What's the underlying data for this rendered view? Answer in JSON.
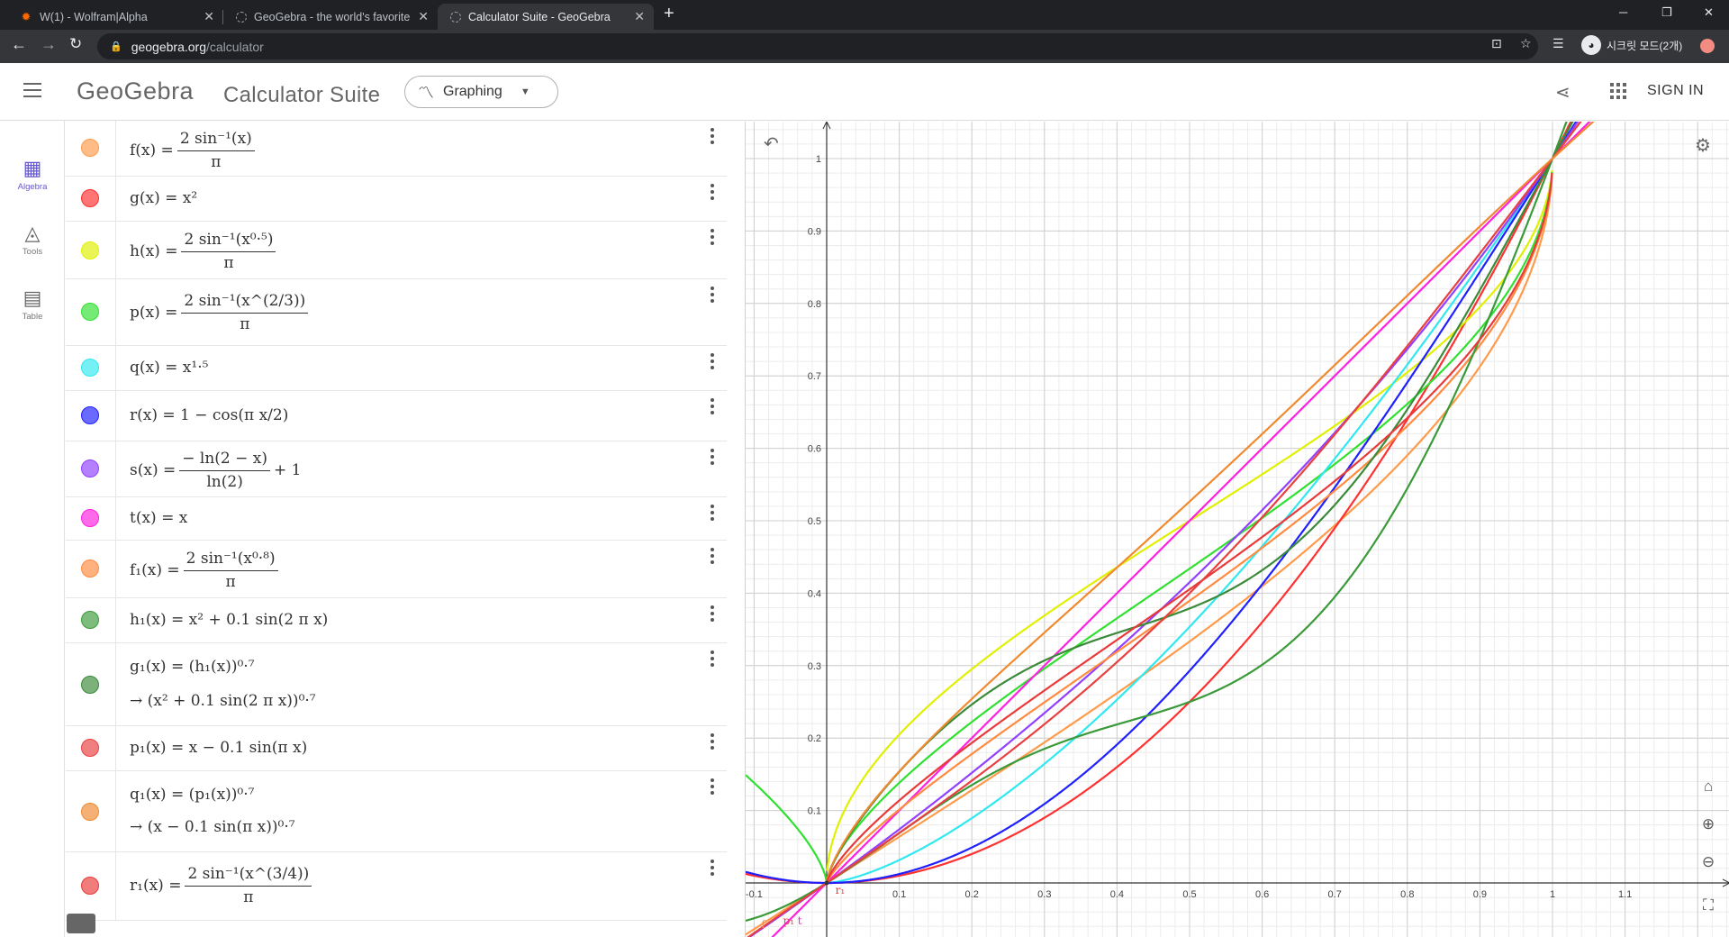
{
  "browser": {
    "tabs": [
      {
        "title": "W(1) - Wolfram|Alpha",
        "icon": "wolfram-icon"
      },
      {
        "title": "GeoGebra - the world's favorite",
        "icon": "geogebra-icon"
      },
      {
        "title": "Calculator Suite - GeoGebra",
        "icon": "geogebra-icon"
      }
    ],
    "url_host": "geogebra.org",
    "url_path": "/calculator",
    "incognito_label": "시크릿 모드(2개)"
  },
  "header": {
    "logo": "GeoGebra",
    "suite_title": "Calculator Suite",
    "app_selector": "Graphing",
    "signin": "SIGN IN"
  },
  "rail": {
    "items": [
      {
        "label": "Algebra",
        "icon": "calculator-icon",
        "active": true
      },
      {
        "label": "Tools",
        "icon": "shapes-icon",
        "active": false
      },
      {
        "label": "Table",
        "icon": "table-icon",
        "active": false
      }
    ]
  },
  "algebra": {
    "rows": [
      {
        "name": "f",
        "color": "#ff9a4a"
      },
      {
        "name": "g",
        "color": "#ff3030"
      },
      {
        "name": "h",
        "color": "#e0f000"
      },
      {
        "name": "p",
        "color": "#30e030"
      },
      {
        "name": "q",
        "color": "#30e8f0"
      },
      {
        "name": "r",
        "color": "#2020ff"
      },
      {
        "name": "s",
        "color": "#9040ff"
      },
      {
        "name": "t",
        "color": "#ff20e0"
      },
      {
        "name": "f1",
        "color": "#ff8a40"
      },
      {
        "name": "h1",
        "color": "#3a9a3a"
      },
      {
        "name": "g1",
        "color": "#3a8a3a"
      },
      {
        "name": "p1",
        "color": "#e84040"
      },
      {
        "name": "q1",
        "color": "#f08a30"
      },
      {
        "name": "r1",
        "color": "#e83a3a"
      }
    ],
    "text": {
      "f_lhs": "f(x)",
      "f_num": "2 sin⁻¹(x)",
      "f_den": "π",
      "g_expr": "g(x) = x²",
      "h_lhs": "h(x)",
      "h_num": "2 sin⁻¹(x⁰·⁵)",
      "h_den": "π",
      "p_lhs": "p(x)",
      "p_num": "2 sin⁻¹(x^(2/3))",
      "p_den": "π",
      "q_expr": "q(x) = x¹·⁵",
      "r_expr": "r(x) = 1 − cos(π x/2)",
      "s_lhs": "s(x)",
      "s_num": "− ln(2 − x)",
      "s_den": "ln(2)",
      "s_tail": "+ 1",
      "t_expr": "t(x) = x",
      "f1_lhs": "f₁(x)",
      "f1_num": "2 sin⁻¹(x⁰·⁸)",
      "f1_den": "π",
      "h1_expr": "h₁(x) = x² + 0.1 sin(2 π x)",
      "g1_expr": "g₁(x) = (h₁(x))⁰·⁷",
      "g1_out": "→ (x² + 0.1 sin(2 π x))⁰·⁷",
      "p1_expr": "p₁(x) = x − 0.1 sin(π x)",
      "q1_expr": "q₁(x) = (p₁(x))⁰·⁷",
      "q1_out": "→ (x − 0.1 sin(π x))⁰·⁷",
      "r1_lhs": "r₁(x)",
      "r1_num": "2 sin⁻¹(x^(3/4))",
      "r1_den": "π"
    }
  },
  "graph": {
    "x_ticks": [
      "-0.1",
      "0.1",
      "0.2",
      "0.3",
      "0.4",
      "0.5",
      "0.6",
      "0.7",
      "0.8",
      "0.9",
      "1",
      "1.1"
    ],
    "y_ticks": [
      "0.1",
      "0.2",
      "0.3",
      "0.4",
      "0.5",
      "0.6",
      "0.7",
      "0.8",
      "0.9",
      "1"
    ],
    "labels": [
      "r₁",
      "f",
      "p₁",
      "t"
    ]
  }
}
